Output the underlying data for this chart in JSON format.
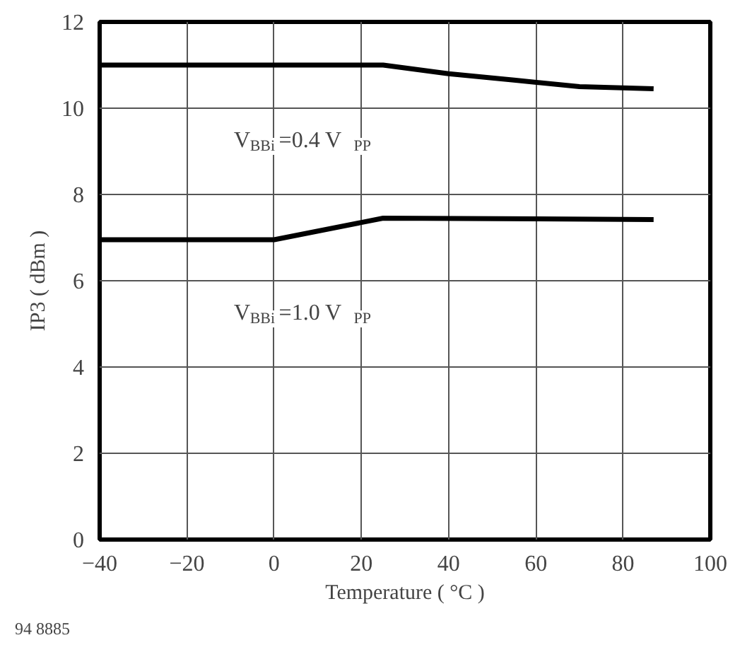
{
  "chart_data": {
    "type": "line",
    "xlabel": "Temperature ( °C )",
    "ylabel": "IP3 ( dBm )",
    "xlim": [
      -40,
      100
    ],
    "ylim": [
      0,
      12
    ],
    "xticks": [
      -40,
      -20,
      0,
      20,
      40,
      60,
      80,
      100
    ],
    "yticks": [
      0,
      2,
      4,
      6,
      8,
      10,
      12
    ],
    "grid": true,
    "marker": "none",
    "line_style": "solid",
    "series": [
      {
        "color": "#000000",
        "x": [
          -40,
          25,
          40,
          55,
          70,
          87
        ],
        "values": [
          11.0,
          11.0,
          10.8,
          10.65,
          10.5,
          10.45
        ]
      },
      {
        "color": "#000000",
        "x": [
          -40,
          0,
          25,
          87
        ],
        "values": [
          6.95,
          6.95,
          7.45,
          7.42
        ]
      }
    ],
    "annotations": [
      "V$_{BBi}$=0.4 V$_{PP}$",
      "V$_{BBi}$=1.0 V$_{PP}$",
      "94 8885"
    ]
  }
}
